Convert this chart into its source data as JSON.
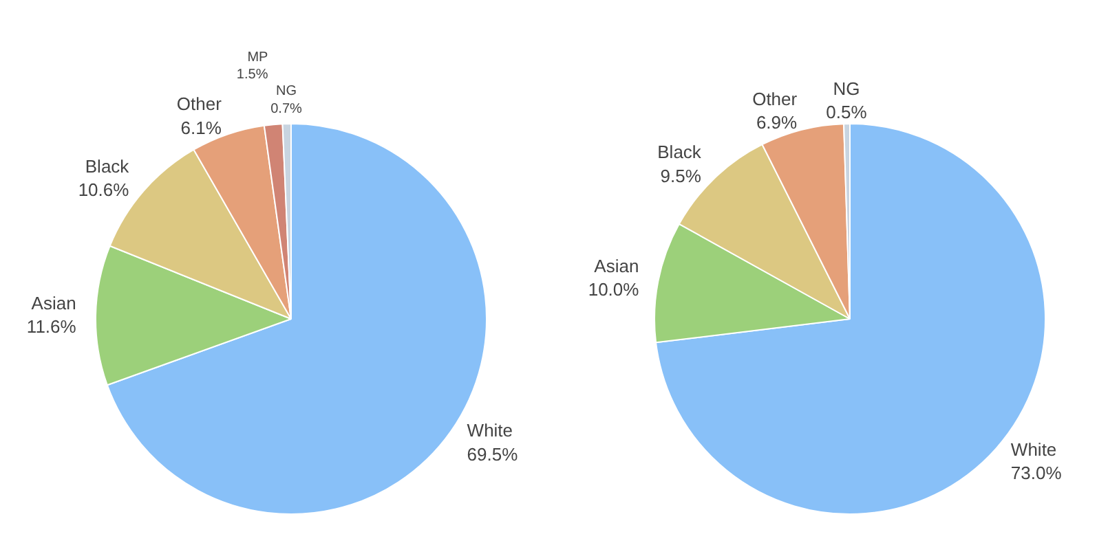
{
  "chart_data": [
    {
      "type": "pie",
      "categories": [
        "White",
        "Asian",
        "Black",
        "Other",
        "MP",
        "NG"
      ],
      "values": [
        69.5,
        11.6,
        10.6,
        6.1,
        1.5,
        0.7
      ],
      "value_labels": [
        "69.5%",
        "11.6%",
        "10.6%",
        "6.1%",
        "1.5%",
        "0.7%"
      ],
      "colors": [
        "#88c0f8",
        "#9cd07a",
        "#dcc882",
        "#e5a079",
        "#d08474",
        "#c8d4e0"
      ],
      "legend": false
    },
    {
      "type": "pie",
      "categories": [
        "White",
        "Asian",
        "Black",
        "Other",
        "NG"
      ],
      "values": [
        73.0,
        10.0,
        9.5,
        6.9,
        0.5
      ],
      "value_labels": [
        "73.0%",
        "10.0%",
        "9.5%",
        "6.9%",
        "0.5%"
      ],
      "colors": [
        "#88c0f8",
        "#9cd07a",
        "#dcc882",
        "#e5a079",
        "#c8d4e0"
      ],
      "legend": false
    }
  ]
}
